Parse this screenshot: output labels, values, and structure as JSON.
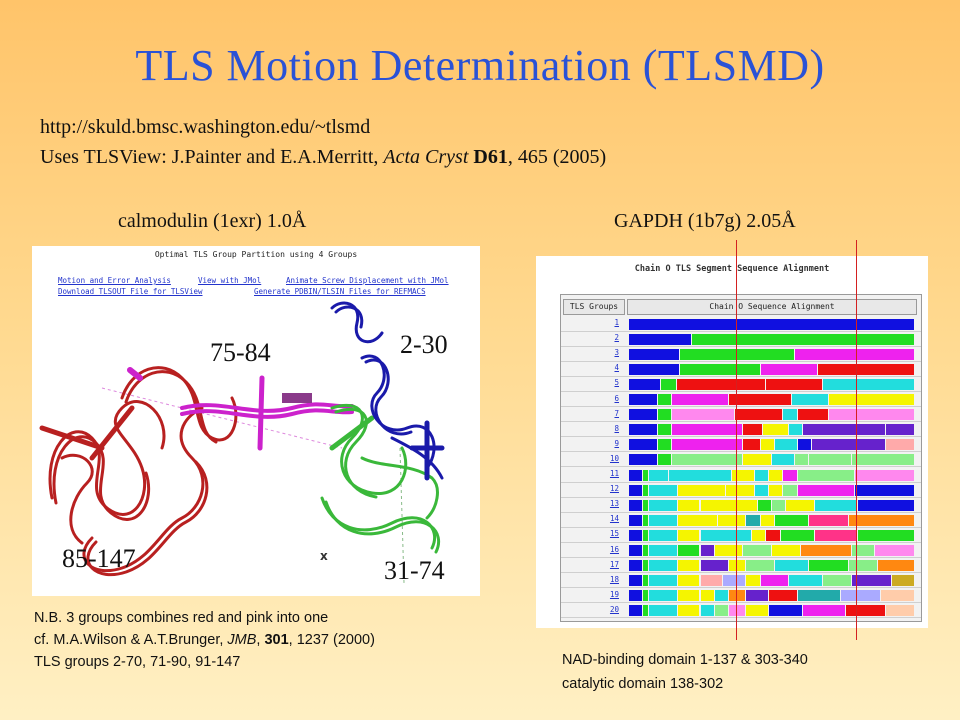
{
  "title": "TLS Motion Determination (TLSMD)",
  "reference": {
    "url": "http://skuld.bmsc.washington.edu/~tlsmd",
    "uses_prefix": "Uses TLSView: J.Painter and E.A.Merritt, ",
    "journal": "Acta Cryst",
    "volume": "D61",
    "pages_year": ", 465 (2005)"
  },
  "calmodulin": {
    "caption": "calmodulin (1exr) 1.0Å",
    "panel_title": "Optimal TLS Group Partition using 4 Groups",
    "links": [
      "Motion and Error Analysis",
      "View with JMol",
      "Animate Screw Displacement with JMol",
      "Download TLSOUT File for TLSView",
      "Generate PDBIN/TLSIN Files for REFMACS"
    ],
    "group_labels": [
      "75-84",
      "2-30",
      "85-147",
      "31-74"
    ],
    "colors": {
      "red": "#b82020",
      "magenta": "#cc22cc",
      "green": "#3ab83a",
      "blue": "#1a1aaa"
    }
  },
  "notes": {
    "line1": "N.B. 3 groups combines red and pink into one",
    "line2_prefix": "cf. M.A.Wilson & A.T.Brunger, ",
    "line2_journal": "JMB",
    "line2_volume": "301",
    "line2_suffix": ", 1237 (2000)",
    "line3": "TLS groups 2-70, 71-90, 91-147"
  },
  "gapdh": {
    "caption": "GAPDH (1b7g) 2.05Å",
    "panel_title": "Chain O TLS Segment Sequence Alignment",
    "col_header_groups": "TLS Groups",
    "col_header_alignment": "Chain O Sequence Alignment",
    "rows": [
      "1",
      "2",
      "3",
      "4",
      "5",
      "6",
      "7",
      "8",
      "9",
      "10",
      "11",
      "12",
      "13",
      "14",
      "15",
      "16",
      "17",
      "18",
      "19",
      "20"
    ],
    "domain_note_1": "NAD-binding domain 1-137 & 303-340",
    "domain_note_2": "catalytic domain 138-302"
  }
}
